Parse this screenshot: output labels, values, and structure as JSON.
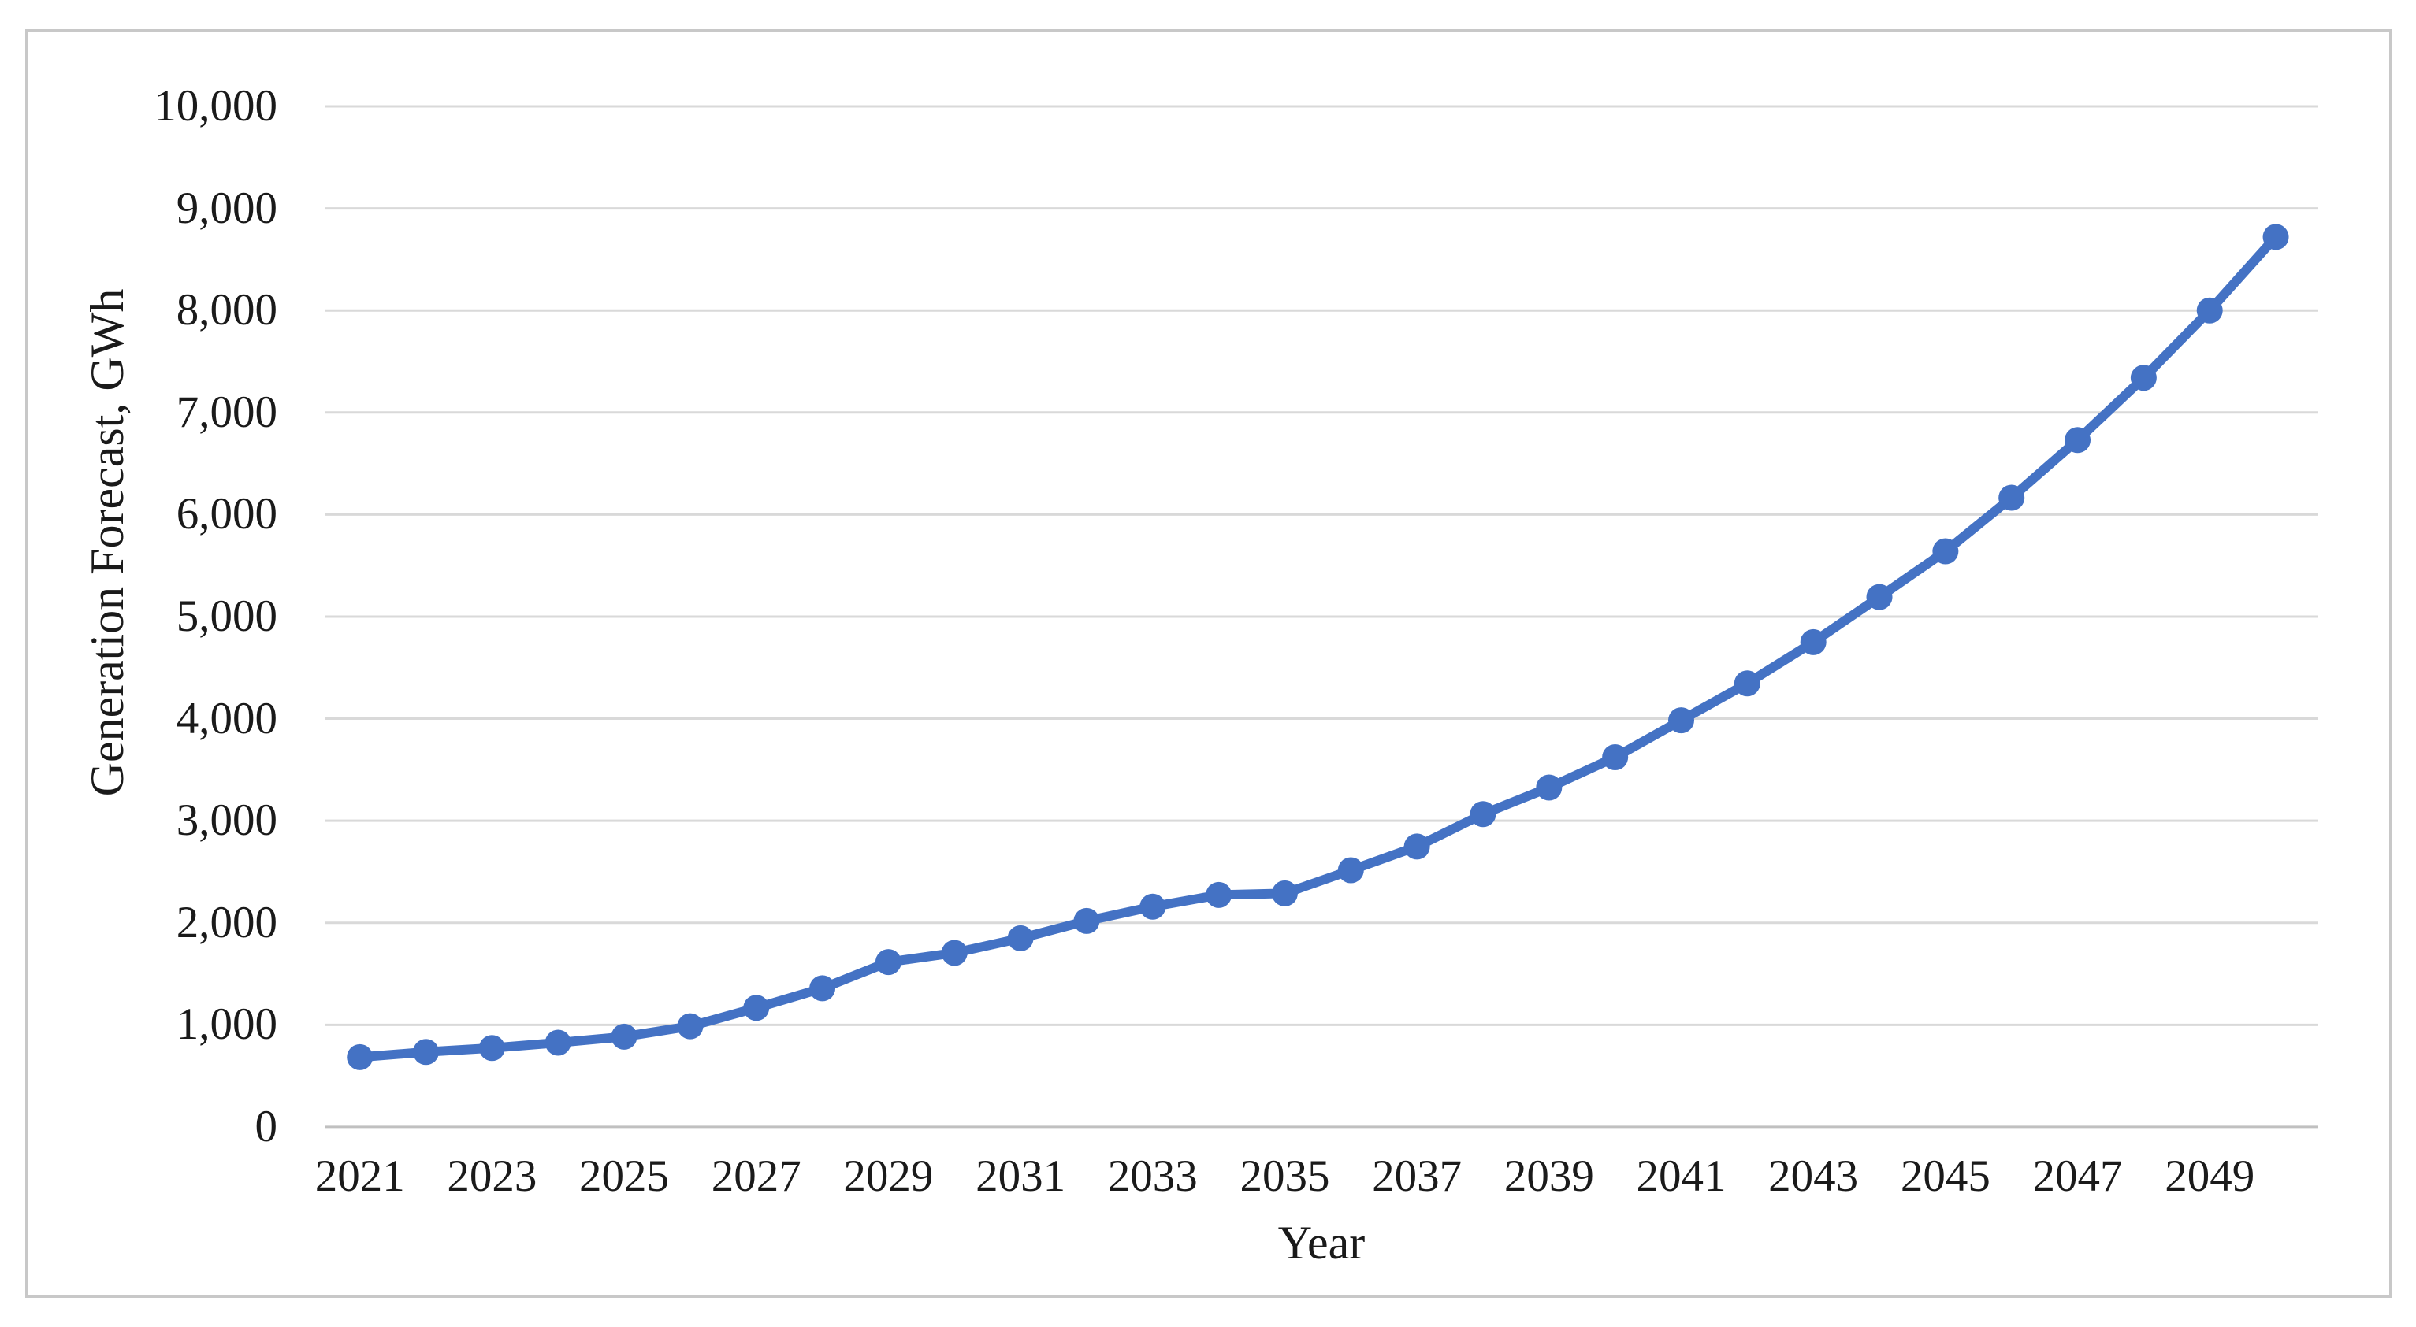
{
  "chart_data": {
    "type": "line",
    "title": "",
    "xlabel": "Year",
    "ylabel": "Generation Forecast, GWh",
    "x": [
      2021,
      2022,
      2023,
      2024,
      2025,
      2026,
      2027,
      2028,
      2029,
      2030,
      2031,
      2032,
      2033,
      2034,
      2035,
      2036,
      2037,
      2038,
      2039,
      2040,
      2041,
      2042,
      2043,
      2044,
      2045,
      2046,
      2047,
      2048,
      2049,
      2050
    ],
    "series": [
      {
        "name": "Generation Forecast, GWh",
        "values": [
          683,
          734,
          773,
          825,
          884,
          986,
          1166,
          1358,
          1615,
          1705,
          1848,
          2018,
          2158,
          2273,
          2288,
          2515,
          2747,
          3065,
          3325,
          3622,
          3984,
          4346,
          4750,
          5192,
          5640,
          6165,
          6730,
          7340,
          8000,
          8720
        ]
      }
    ],
    "ylim": [
      0,
      10000
    ],
    "ytick_step": 1000,
    "ytick_labels": [
      "0",
      "1,000",
      "2,000",
      "3,000",
      "4,000",
      "5,000",
      "6,000",
      "7,000",
      "8,000",
      "9,000",
      "10,000"
    ],
    "xtick_labels": [
      "2021",
      "2023",
      "2025",
      "2027",
      "2029",
      "2031",
      "2033",
      "2035",
      "2037",
      "2039",
      "2041",
      "2043",
      "2045",
      "2047",
      "2049"
    ],
    "grid": "horizontal",
    "legend": "none",
    "marker": "circle",
    "colors": {
      "line": "#4472C4",
      "marker": "#4472C4",
      "gridline": "#D9D9D9",
      "axis_line": "#C0C0C0",
      "text": "#1A1A1A",
      "border": "#C8C8C8",
      "background": "#FFFFFF"
    }
  }
}
